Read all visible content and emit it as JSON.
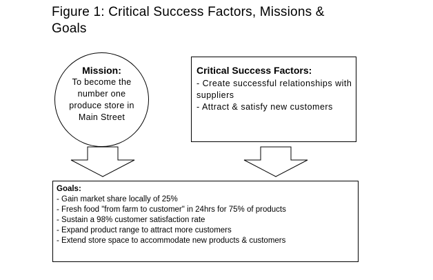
{
  "figure": {
    "title": "Figure 1: Critical Success Factors, Missions & Goals"
  },
  "mission": {
    "heading": "Mission:",
    "text": "To become the number one produce store in Main Street"
  },
  "critical_success_factors": {
    "heading": "Critical Success Factors:",
    "items": [
      "- Create successful relationships with suppliers",
      "- Attract & satisfy new  customers"
    ]
  },
  "goals": {
    "heading": "Goals:",
    "items": [
      "- Gain market share locally of 25%",
      "- Fresh food \"from farm to customer\" in 24hrs for 75% of products",
      "- Sustain a 98% customer satisfaction rate",
      "- Expand product range to attract more customers",
      "- Extend store space to accommodate new products & customers"
    ]
  },
  "icons": {
    "mission_to_goals": "down-arrow-icon",
    "csf_to_goals": "down-arrow-icon"
  }
}
